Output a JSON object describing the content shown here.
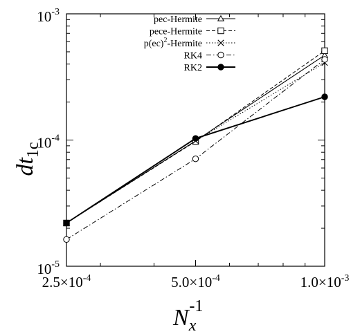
{
  "chart_data": {
    "type": "line",
    "xscale": "log",
    "yscale": "log",
    "xlim": [
      0.00025,
      0.001
    ],
    "ylim": [
      1e-05,
      0.001
    ],
    "grid": false,
    "legend_position": "top-left",
    "xlabel": {
      "base": "N",
      "sub": "x",
      "sup": "-1"
    },
    "ylabel": {
      "base": "dt",
      "sub": "1c"
    },
    "x_ticks": [
      {
        "value": 0.00025,
        "mantissa": "2.5×10",
        "exp": "-4"
      },
      {
        "value": 0.0005,
        "mantissa": "5.0×10",
        "exp": "-4"
      },
      {
        "value": 0.001,
        "mantissa": "1.0×10",
        "exp": "-3"
      }
    ],
    "y_ticks": [
      {
        "value": 1e-05,
        "mantissa": "10",
        "exp": "-5"
      },
      {
        "value": 0.0001,
        "mantissa": "10",
        "exp": "-4"
      },
      {
        "value": 0.001,
        "mantissa": "10",
        "exp": "-3"
      }
    ],
    "x": [
      0.00025,
      0.0005,
      0.001
    ],
    "series": [
      {
        "name": "pec-Hermite",
        "marker": "triangle",
        "dash": "solid",
        "stroke_width": 1.1,
        "values": [
          2.2e-05,
          9.85e-05,
          0.00047
        ]
      },
      {
        "name": "pece-Hermite",
        "marker": "square",
        "dash": "dashed",
        "stroke_width": 1.0,
        "values": [
          2.2e-05,
          9.75e-05,
          0.00051
        ]
      },
      {
        "name": "p(ec)²-Hermite",
        "name_base": "p(ec)",
        "name_sup": "2",
        "name_rest": "-Hermite",
        "marker": "cross",
        "dash": "dotted",
        "stroke_width": 1.0,
        "values": [
          2.2e-05,
          9.85e-05,
          0.00041
        ]
      },
      {
        "name": "RK4",
        "marker": "circle-open",
        "dash": "dashdot",
        "stroke_width": 1.0,
        "values": [
          1.63e-05,
          7.1e-05,
          0.000435
        ]
      },
      {
        "name": "RK2",
        "marker": "circle-filled",
        "dash": "solid",
        "stroke_width": 1.9,
        "values": [
          2.2e-05,
          0.000103,
          0.00022
        ]
      }
    ]
  }
}
